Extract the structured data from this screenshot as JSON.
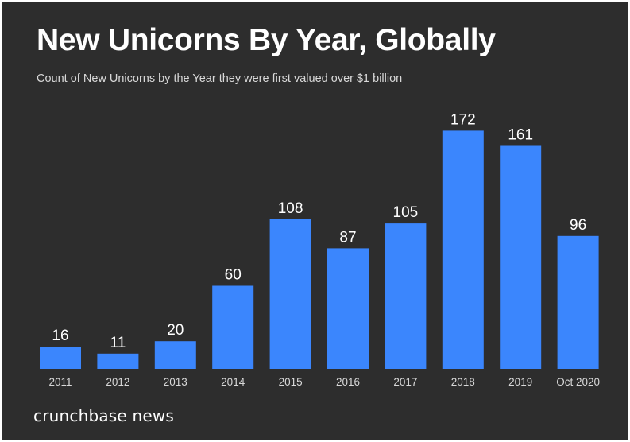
{
  "header": {
    "title": "New Unicorns By Year, Globally",
    "subtitle": "Count of New Unicorns by the Year they were first valued over $1 billion"
  },
  "footer": {
    "brand": "crunchbase news"
  },
  "colors": {
    "background": "#2d2d2d",
    "bar": "#3b86fd",
    "text": "#ffffff",
    "tick_text": "#d8d8d8"
  },
  "chart_data": {
    "type": "bar",
    "title": "New Unicorns By Year, Globally",
    "subtitle": "Count of New Unicorns by the Year they were first valued over $1 billion",
    "xlabel": "",
    "ylabel": "",
    "categories": [
      "2011",
      "2012",
      "2013",
      "2014",
      "2015",
      "2016",
      "2017",
      "2018",
      "2019",
      "Oct 2020"
    ],
    "series": [
      {
        "name": "New Unicorns",
        "values": [
          16,
          11,
          20,
          60,
          108,
          87,
          105,
          172,
          161,
          96
        ]
      }
    ],
    "ylim": [
      0,
      180
    ],
    "grid": false,
    "legend": "none",
    "data_labels": true
  }
}
